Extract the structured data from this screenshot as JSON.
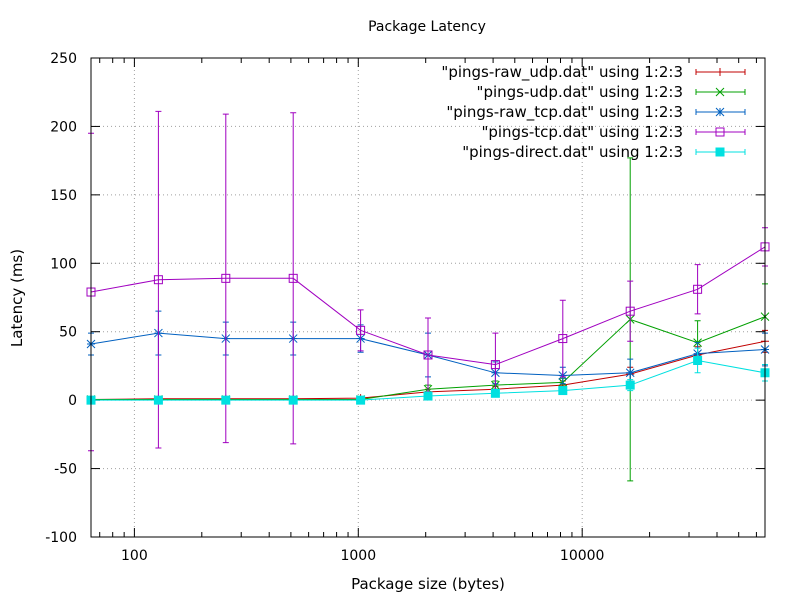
{
  "chart_data": {
    "type": "line",
    "title": "Package Latency",
    "xlabel": "Package size (bytes)",
    "ylabel": "Latency (ms)",
    "xscale": "log",
    "xlim": [
      64,
      65536
    ],
    "ylim": [
      -100,
      250
    ],
    "grid": true,
    "legend_position": "top-right",
    "x_ticks": [
      {
        "value": 100,
        "label": "100"
      },
      {
        "value": 1000,
        "label": "1000"
      },
      {
        "value": 10000,
        "label": "10000"
      }
    ],
    "y_ticks": [
      {
        "value": -100,
        "label": "-100"
      },
      {
        "value": -50,
        "label": "-50"
      },
      {
        "value": 0,
        "label": "0"
      },
      {
        "value": 50,
        "label": "50"
      },
      {
        "value": 100,
        "label": "100"
      },
      {
        "value": 150,
        "label": "150"
      },
      {
        "value": 200,
        "label": "200"
      },
      {
        "value": 250,
        "label": "250"
      }
    ],
    "x": [
      64,
      128,
      256,
      512,
      1024,
      2048,
      4096,
      8192,
      16384,
      32768,
      65536
    ],
    "series": [
      {
        "name": "\"pings-raw_udp.dat\" using 1:2:3",
        "color": "#c00000",
        "marker": "plus",
        "values": [
          0.5,
          1,
          1,
          1,
          1.5,
          6,
          8,
          11,
          19,
          33,
          43
        ],
        "errors": [
          0.5,
          1,
          1,
          1,
          1,
          2,
          2,
          3,
          5,
          6,
          8
        ]
      },
      {
        "name": "\"pings-udp.dat\" using 1:2:3",
        "color": "#00a000",
        "marker": "cross",
        "values": [
          0.5,
          0.5,
          0.5,
          0.5,
          0.5,
          8,
          11,
          13,
          59,
          42,
          61
        ],
        "errors": [
          0.5,
          0.5,
          0.5,
          0.5,
          0.5,
          3,
          3,
          3,
          118,
          16,
          24
        ]
      },
      {
        "name": "\"pings-raw_tcp.dat\" using 1:2:3",
        "color": "#0060c0",
        "marker": "star",
        "values": [
          41,
          49,
          45,
          45,
          45,
          33,
          20,
          18,
          20,
          34,
          37
        ],
        "errors": [
          8,
          16,
          12,
          12,
          10,
          16,
          8,
          6,
          10,
          8,
          12
        ]
      },
      {
        "name": "\"pings-tcp.dat\" using 1:2:3",
        "color": "#a000c0",
        "marker": "box",
        "values": [
          79,
          88,
          89,
          89,
          51,
          33,
          26,
          45,
          65,
          81,
          112
        ],
        "errors": [
          116,
          123,
          120,
          121,
          15,
          27,
          23,
          28,
          22,
          18,
          14
        ]
      },
      {
        "name": "\"pings-direct.dat\" using 1:2:3",
        "color": "#00e0e0",
        "marker": "filled-box",
        "values": [
          0,
          0,
          0,
          0,
          0,
          3,
          5,
          7,
          11,
          29,
          20
        ],
        "errors": [
          0.5,
          0.5,
          0.5,
          0.5,
          0.5,
          1,
          2,
          2,
          4,
          9,
          6
        ]
      }
    ]
  }
}
